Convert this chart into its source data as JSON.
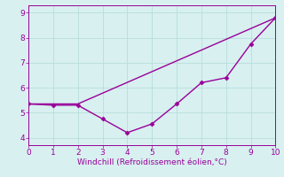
{
  "xlabel": "Windchill (Refroidissement éolien,°C)",
  "bg_color": "#d8f0f0",
  "line_color": "#990099",
  "line1_x": [
    0,
    2,
    10
  ],
  "line1_y": [
    5.35,
    5.35,
    8.8
  ],
  "line2_x": [
    0,
    1,
    2,
    3,
    4,
    5,
    6,
    7,
    8,
    9,
    10
  ],
  "line2_y": [
    5.35,
    5.3,
    5.3,
    4.75,
    4.2,
    4.55,
    5.35,
    6.2,
    6.4,
    7.75,
    8.8
  ],
  "xlim": [
    0,
    10
  ],
  "ylim": [
    3.7,
    9.3
  ],
  "yticks": [
    4,
    5,
    6,
    7,
    8,
    9
  ],
  "xticks": [
    0,
    1,
    2,
    3,
    4,
    5,
    6,
    7,
    8,
    9,
    10
  ],
  "marker": "D",
  "marker_size": 2.5,
  "linewidth": 1.0,
  "grid_color": "#b8dede",
  "xlabel_fontsize": 6.5,
  "tick_fontsize": 6.5
}
